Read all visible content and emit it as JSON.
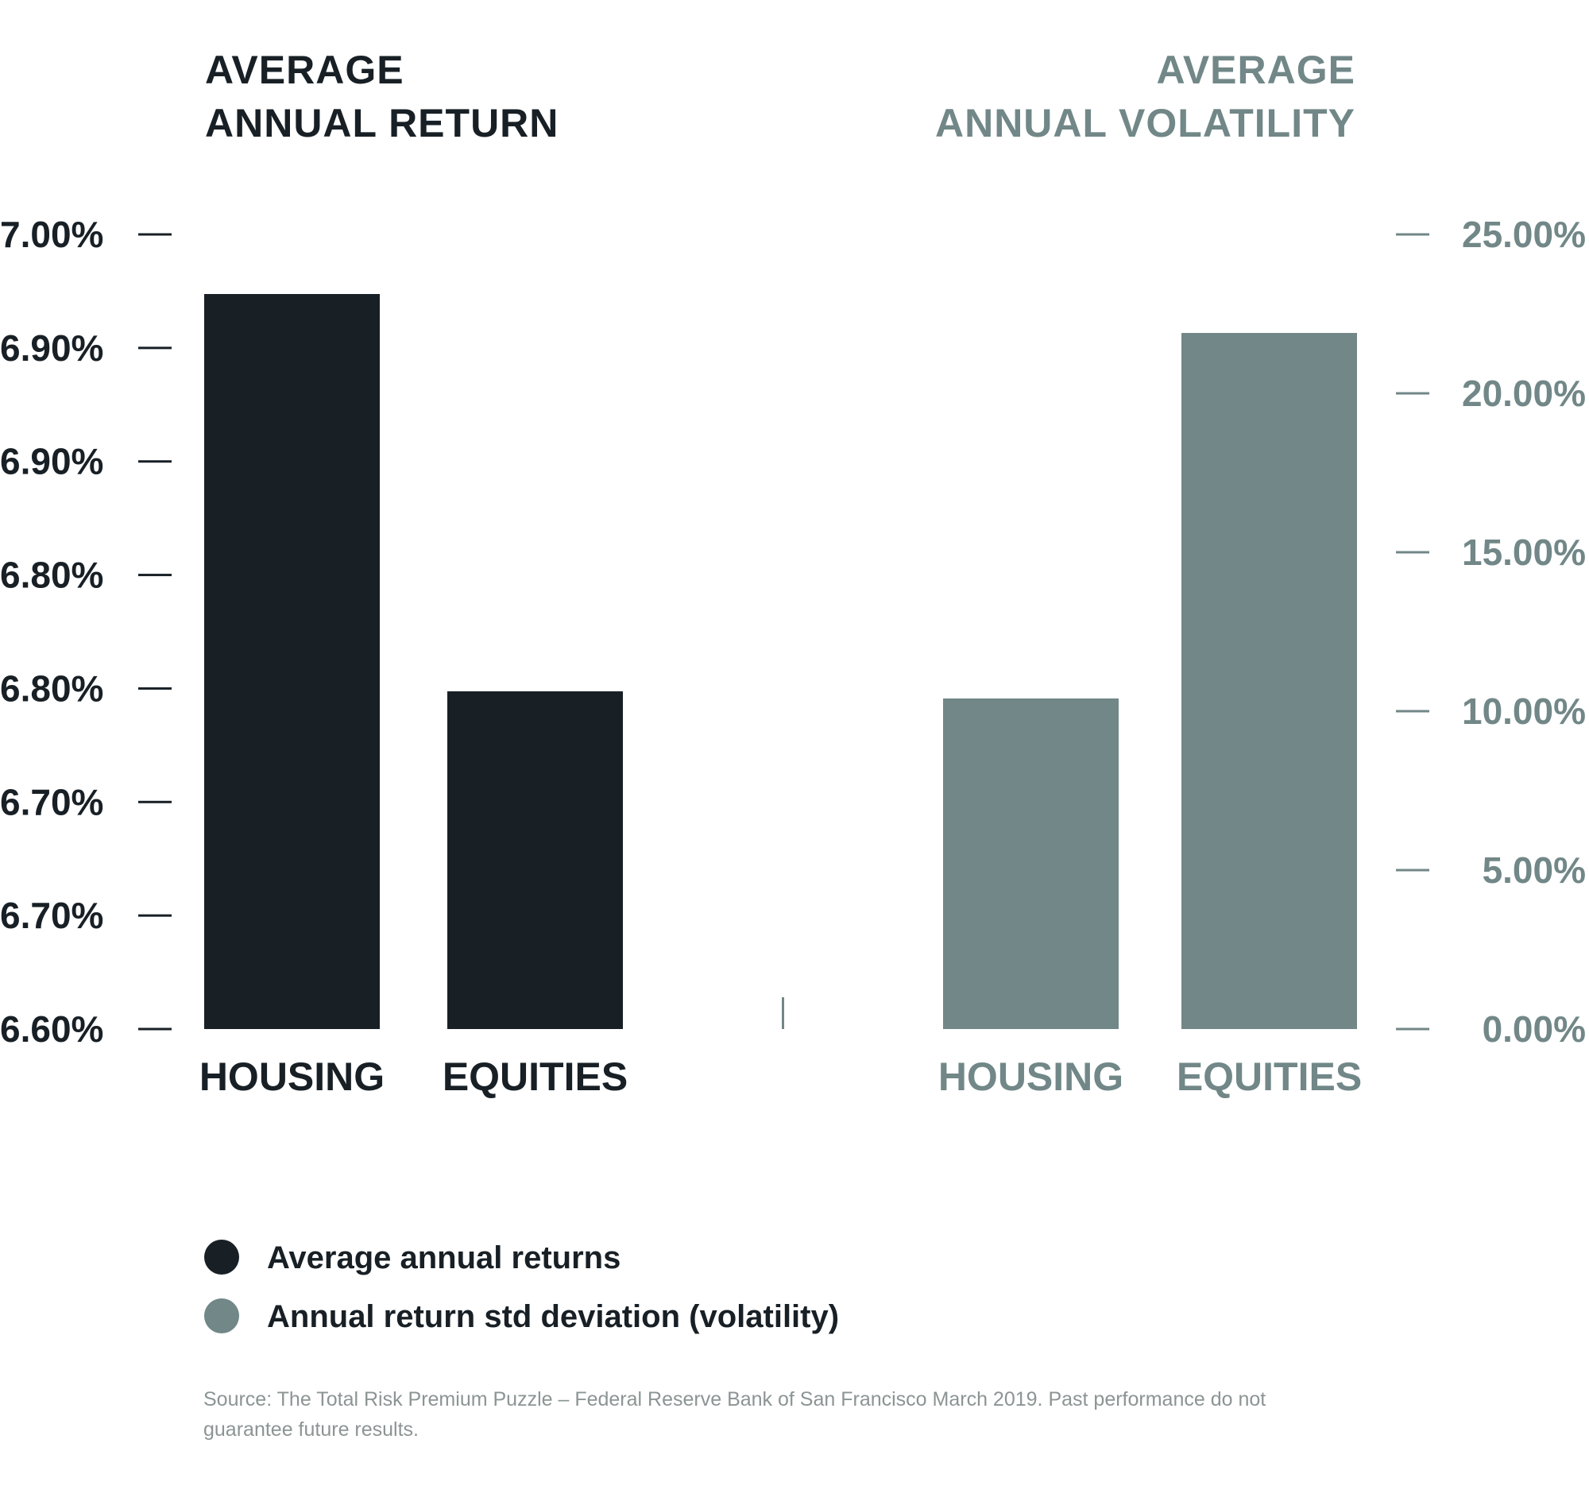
{
  "colors": {
    "returns": "#182026",
    "volatility": "#728787"
  },
  "legend": [
    {
      "label": "Average annual returns",
      "color": "#182026"
    },
    {
      "label": "Annual return std deviation (volatility)",
      "color": "#728787"
    }
  ],
  "source": "Source: The Total Risk Premium Puzzle – Federal Reserve Bank of San Francisco March 2019. Past performance do not guarantee future results.",
  "chart_data": [
    {
      "type": "bar",
      "title": "AVERAGE ANNUAL RETURN",
      "title_lines": [
        "AVERAGE",
        "ANNUAL RETURN"
      ],
      "categories": [
        "HOUSING",
        "EQUITIES"
      ],
      "series": [
        {
          "name": "Average annual returns",
          "values": [
            6.97,
            6.77
          ]
        }
      ],
      "yticks": [
        "7.00%",
        "6.90%",
        "6.90%",
        "6.80%",
        "6.80%",
        "6.70%",
        "6.70%",
        "6.60%"
      ],
      "ylim": [
        6.6,
        7.0
      ],
      "axis_side": "left",
      "color": "#182026"
    },
    {
      "type": "bar",
      "title": "AVERAGE ANNUAL VOLATILITY",
      "title_lines": [
        "AVERAGE",
        "ANNUAL VOLATILITY"
      ],
      "categories": [
        "HOUSING",
        "EQUITIES"
      ],
      "series": [
        {
          "name": "Annual return std deviation (volatility)",
          "values": [
            10.4,
            21.9
          ]
        }
      ],
      "yticks": [
        "25.00%",
        "20.00%",
        "15.00%",
        "10.00%",
        "5.00%",
        "0.00%"
      ],
      "ylim": [
        0,
        25
      ],
      "axis_side": "right",
      "color": "#728787"
    }
  ]
}
